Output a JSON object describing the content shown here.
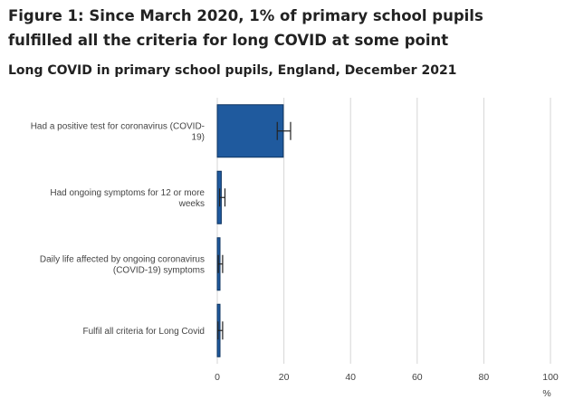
{
  "figure": {
    "title": "Figure 1: Since March 2020, 1% of primary school pupils fulfilled all the criteria for long COVID at some point",
    "subtitle": "Long COVID in primary school pupils, England, December 2021"
  },
  "colors": {
    "bar_fill": "#1f5a9e",
    "bar_stroke": "#0f3461",
    "gridline": "#d6d6d6",
    "error_bar": "#222222",
    "text": "#444444"
  },
  "chart_data": {
    "type": "bar",
    "orientation": "horizontal",
    "categories": [
      [
        "Had a positive test for coronavirus (COVID-",
        "19)"
      ],
      [
        "Had ongoing symptoms for 12 or more",
        "weeks"
      ],
      [
        "Daily life affected by ongoing coronavirus",
        "(COVID-19) symptoms"
      ],
      [
        "Fulfil all criteria for Long Covid"
      ]
    ],
    "values": [
      19.8,
      1.2,
      0.8,
      0.7
    ],
    "error_low": [
      18.0,
      0.7,
      0.3,
      0.2
    ],
    "error_high": [
      22.0,
      2.3,
      1.6,
      1.6
    ],
    "xlim": [
      0,
      100
    ],
    "xticks": [
      0,
      20,
      40,
      60,
      80,
      100
    ],
    "xlabel": "%",
    "grid": true,
    "legend": "none"
  }
}
